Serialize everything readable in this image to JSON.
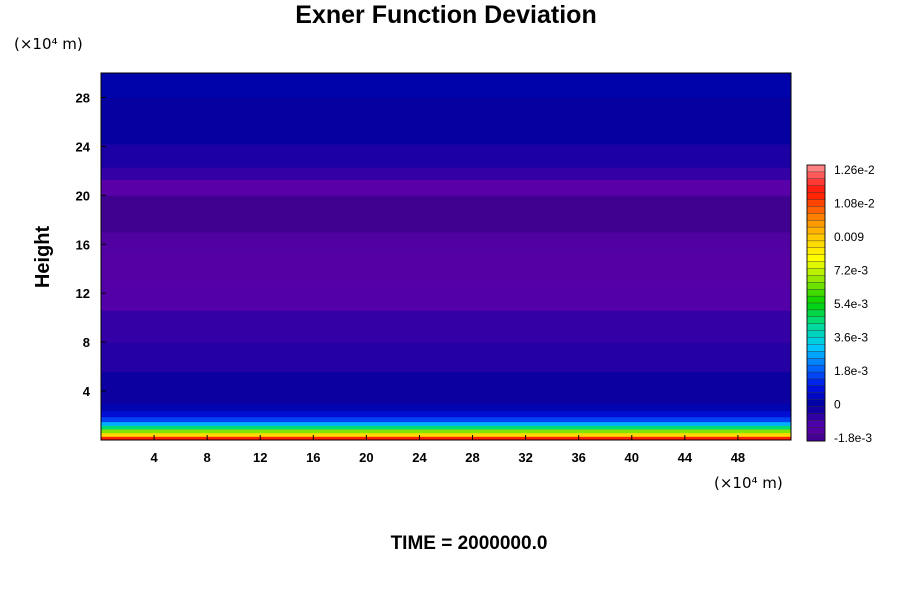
{
  "chart_data": {
    "type": "heatmap",
    "title": "Exner Function Deviation",
    "ylabel": "Height",
    "y_unit": "(×10⁴ m)",
    "x_unit": "(×10⁴ m)",
    "xlim": [
      0,
      52
    ],
    "ylim": [
      0,
      30
    ],
    "x_ticks": [
      "4",
      "8",
      "12",
      "16",
      "20",
      "24",
      "28",
      "32",
      "36",
      "40",
      "44",
      "48"
    ],
    "y_ticks": [
      "4",
      "8",
      "12",
      "16",
      "20",
      "24",
      "28"
    ],
    "colorbar": {
      "range": [
        -0.0018,
        0.0126
      ],
      "tick_labels": [
        "1.26e-2",
        "1.08e-2",
        "0.009",
        "7.2e-3",
        "5.4e-3",
        "3.6e-3",
        "1.8e-3",
        "0",
        "-1.8e-3"
      ],
      "tick_values": [
        0.0126,
        0.0108,
        0.009,
        0.0072,
        0.0054,
        0.0036,
        0.0018,
        0,
        -0.0018
      ]
    },
    "layers": [
      {
        "y0": 0,
        "y1": 0.3,
        "value": 0.011
      },
      {
        "y0": 0.3,
        "y1": 0.6,
        "value": 0.0085
      },
      {
        "y0": 0.6,
        "y1": 0.9,
        "value": 0.0065
      },
      {
        "y0": 0.9,
        "y1": 1.2,
        "value": 0.0045
      },
      {
        "y0": 1.2,
        "y1": 1.5,
        "value": 0.0028
      },
      {
        "y0": 1.5,
        "y1": 1.9,
        "value": 0.0016
      },
      {
        "y0": 1.9,
        "y1": 2.4,
        "value": 0.0008
      },
      {
        "y0": 2.4,
        "y1": 3.0,
        "value": 0.0003
      },
      {
        "y0": 3.0,
        "y1": 5.6,
        "value": -0.0001
      },
      {
        "y0": 5.6,
        "y1": 8.0,
        "value": -0.0004
      },
      {
        "y0": 8.0,
        "y1": 10.6,
        "value": -0.0006
      },
      {
        "y0": 10.6,
        "y1": 13.0,
        "value": -0.001
      },
      {
        "y0": 13.0,
        "y1": 15.3,
        "value": -0.0012
      },
      {
        "y0": 15.3,
        "y1": 17.0,
        "value": -0.0013
      },
      {
        "y0": 17.0,
        "y1": 20.0,
        "value": -0.0017
      },
      {
        "y0": 20.0,
        "y1": 21.3,
        "value": -0.0011
      },
      {
        "y0": 21.3,
        "y1": 22.3,
        "value": -0.0006
      },
      {
        "y0": 22.3,
        "y1": 24.2,
        "value": -0.0003
      },
      {
        "y0": 24.2,
        "y1": 28.0,
        "value": 0.0
      },
      {
        "y0": 28.0,
        "y1": 30.0,
        "value": 0.0002
      }
    ]
  },
  "footer": {
    "time_label": "TIME = 2000000.0"
  }
}
